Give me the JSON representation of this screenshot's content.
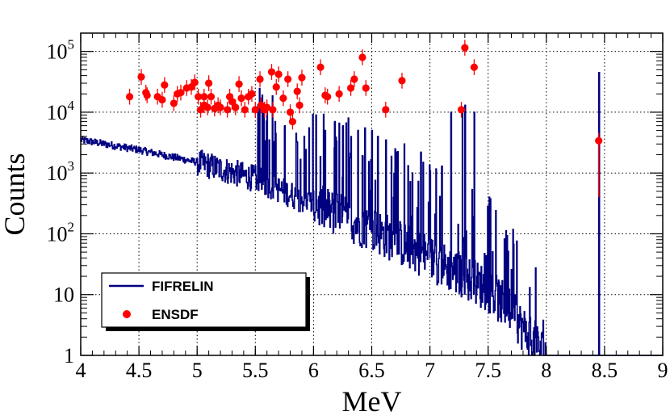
{
  "chart_data": {
    "type": "scatter",
    "xlabel": "MeV",
    "ylabel": "Counts",
    "xlim": [
      4,
      9
    ],
    "ylim": [
      1,
      200000
    ],
    "yscale": "log",
    "grid": true,
    "x_ticks": [
      4,
      4.5,
      5,
      5.5,
      6,
      6.5,
      7,
      7.5,
      8,
      8.5,
      9
    ],
    "x_tick_labels": [
      "4",
      "4.5",
      "5",
      "5.5",
      "6",
      "6.5",
      "7",
      "7.5",
      "8",
      "8.5",
      "9"
    ],
    "y_ticks": [
      {
        "value": 1,
        "base": "1",
        "exp": ""
      },
      {
        "value": 10,
        "base": "10",
        "exp": ""
      },
      {
        "value": 100,
        "base": "10",
        "exp": "2"
      },
      {
        "value": 1000,
        "base": "10",
        "exp": "3"
      },
      {
        "value": 10000,
        "base": "10",
        "exp": "4"
      },
      {
        "value": 100000,
        "base": "10",
        "exp": "5"
      }
    ],
    "legend": {
      "placement": "bottom-left",
      "entries": [
        {
          "label": "FIFRELIN",
          "style": "line",
          "color": "#000080"
        },
        {
          "label": "ENSDF",
          "style": "marker",
          "color": "#ff0000"
        }
      ]
    },
    "series": [
      {
        "name": "FIFRELIN",
        "style": "histogram",
        "color": "#000080",
        "continuum": [
          {
            "x": 4.0,
            "y": 3500
          },
          {
            "x": 4.5,
            "y": 2400
          },
          {
            "x": 5.0,
            "y": 1500
          },
          {
            "x": 5.5,
            "y": 800
          },
          {
            "x": 6.0,
            "y": 300
          },
          {
            "x": 6.5,
            "y": 120
          },
          {
            "x": 7.0,
            "y": 40
          },
          {
            "x": 7.5,
            "y": 12
          },
          {
            "x": 7.7,
            "y": 5
          },
          {
            "x": 7.85,
            "y": 2
          },
          {
            "x": 8.0,
            "y": 1
          }
        ],
        "peaks": [
          {
            "x": 5.52,
            "y": 4000
          },
          {
            "x": 5.62,
            "y": 3500
          },
          {
            "x": 5.67,
            "y": 7000
          },
          {
            "x": 5.75,
            "y": 6000
          },
          {
            "x": 5.85,
            "y": 4500
          },
          {
            "x": 5.92,
            "y": 4000
          },
          {
            "x": 6.02,
            "y": 9000
          },
          {
            "x": 6.1,
            "y": 5000
          },
          {
            "x": 6.18,
            "y": 7000
          },
          {
            "x": 6.25,
            "y": 6000
          },
          {
            "x": 6.3,
            "y": 8000
          },
          {
            "x": 6.38,
            "y": 5000
          },
          {
            "x": 6.44,
            "y": 5500
          },
          {
            "x": 6.5,
            "y": 5000
          },
          {
            "x": 6.55,
            "y": 4000
          },
          {
            "x": 6.62,
            "y": 3500
          },
          {
            "x": 6.7,
            "y": 2500
          },
          {
            "x": 6.78,
            "y": 3000
          },
          {
            "x": 6.85,
            "y": 1000
          },
          {
            "x": 6.92,
            "y": 2200
          },
          {
            "x": 7.0,
            "y": 800
          },
          {
            "x": 7.1,
            "y": 1300
          },
          {
            "x": 7.18,
            "y": 10000
          },
          {
            "x": 7.28,
            "y": 11000
          },
          {
            "x": 7.3,
            "y": 13000
          },
          {
            "x": 7.38,
            "y": 10000
          },
          {
            "x": 8.45,
            "y": 45000
          }
        ]
      },
      {
        "name": "ENSDF",
        "style": "marker",
        "color": "#ff0000",
        "points": [
          {
            "x": 4.42,
            "y": 18000
          },
          {
            "x": 4.52,
            "y": 38000
          },
          {
            "x": 4.56,
            "y": 21000
          },
          {
            "x": 4.57,
            "y": 19000
          },
          {
            "x": 4.66,
            "y": 18000
          },
          {
            "x": 4.7,
            "y": 16000
          },
          {
            "x": 4.72,
            "y": 28000
          },
          {
            "x": 4.8,
            "y": 14000
          },
          {
            "x": 4.83,
            "y": 20000
          },
          {
            "x": 4.86,
            "y": 21000
          },
          {
            "x": 4.91,
            "y": 25000
          },
          {
            "x": 4.95,
            "y": 26000
          },
          {
            "x": 4.98,
            "y": 31000
          },
          {
            "x": 5.01,
            "y": 18000
          },
          {
            "x": 5.03,
            "y": 11000
          },
          {
            "x": 5.06,
            "y": 13000
          },
          {
            "x": 5.06,
            "y": 18000
          },
          {
            "x": 5.09,
            "y": 12000
          },
          {
            "x": 5.1,
            "y": 30000
          },
          {
            "x": 5.12,
            "y": 18000
          },
          {
            "x": 5.15,
            "y": 11500
          },
          {
            "x": 5.18,
            "y": 13000
          },
          {
            "x": 5.2,
            "y": 12000
          },
          {
            "x": 5.26,
            "y": 11000
          },
          {
            "x": 5.28,
            "y": 18000
          },
          {
            "x": 5.3,
            "y": 15000
          },
          {
            "x": 5.33,
            "y": 12000
          },
          {
            "x": 5.36,
            "y": 29000
          },
          {
            "x": 5.38,
            "y": 17000
          },
          {
            "x": 5.41,
            "y": 11000
          },
          {
            "x": 5.44,
            "y": 18000
          },
          {
            "x": 5.47,
            "y": 20000
          },
          {
            "x": 5.5,
            "y": 11000
          },
          {
            "x": 5.54,
            "y": 35000
          },
          {
            "x": 5.55,
            "y": 13000
          },
          {
            "x": 5.58,
            "y": 11000
          },
          {
            "x": 5.6,
            "y": 12000
          },
          {
            "x": 5.64,
            "y": 46000
          },
          {
            "x": 5.65,
            "y": 11000
          },
          {
            "x": 5.68,
            "y": 26000
          },
          {
            "x": 5.7,
            "y": 42000
          },
          {
            "x": 5.74,
            "y": 17000
          },
          {
            "x": 5.78,
            "y": 35000
          },
          {
            "x": 5.8,
            "y": 10000
          },
          {
            "x": 5.82,
            "y": 7000
          },
          {
            "x": 5.86,
            "y": 22000
          },
          {
            "x": 5.88,
            "y": 13000
          },
          {
            "x": 5.9,
            "y": 37000
          },
          {
            "x": 6.06,
            "y": 55000
          },
          {
            "x": 6.1,
            "y": 19000
          },
          {
            "x": 6.12,
            "y": 18000
          },
          {
            "x": 6.22,
            "y": 20000
          },
          {
            "x": 6.32,
            "y": 25000
          },
          {
            "x": 6.35,
            "y": 35000
          },
          {
            "x": 6.42,
            "y": 80000
          },
          {
            "x": 6.45,
            "y": 25000
          },
          {
            "x": 6.62,
            "y": 11000
          },
          {
            "x": 6.76,
            "y": 33000
          },
          {
            "x": 7.27,
            "y": 11000
          },
          {
            "x": 7.3,
            "y": 115000
          },
          {
            "x": 7.38,
            "y": 55000
          },
          {
            "x": 8.45,
            "y": 3400
          }
        ]
      }
    ]
  }
}
